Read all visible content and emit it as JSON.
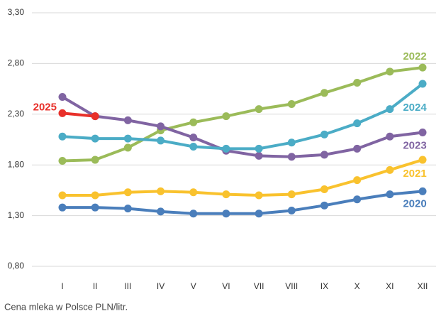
{
  "chart_data": {
    "type": "line",
    "caption": "Cena mleka w Polsce PLN/litr.",
    "categories": [
      "I",
      "II",
      "III",
      "IV",
      "V",
      "VI",
      "VII",
      "VIII",
      "IX",
      "X",
      "XI",
      "XII"
    ],
    "series": [
      {
        "name": "2020",
        "color": "#4a7ebb",
        "values": [
          1.38,
          1.38,
          1.37,
          1.34,
          1.32,
          1.32,
          1.32,
          1.35,
          1.4,
          1.46,
          1.51,
          1.54
        ]
      },
      {
        "name": "2021",
        "color": "#f9c22e",
        "values": [
          1.5,
          1.5,
          1.53,
          1.54,
          1.53,
          1.51,
          1.5,
          1.51,
          1.56,
          1.65,
          1.75,
          1.85
        ]
      },
      {
        "name": "2022",
        "color": "#9bbb59",
        "values": [
          1.84,
          1.85,
          1.97,
          2.14,
          2.22,
          2.28,
          2.35,
          2.4,
          2.51,
          2.61,
          2.72,
          2.76
        ]
      },
      {
        "name": "2023",
        "color": "#8064a2",
        "values": [
          2.47,
          2.28,
          2.24,
          2.18,
          2.07,
          1.94,
          1.89,
          1.88,
          1.9,
          1.96,
          2.08,
          2.12
        ]
      },
      {
        "name": "2024",
        "color": "#4bacc6",
        "values": [
          2.08,
          2.06,
          2.06,
          2.04,
          1.98,
          1.96,
          1.96,
          2.02,
          2.1,
          2.21,
          2.35,
          2.6
        ]
      },
      {
        "name": "2025",
        "color": "#e8302a",
        "values": [
          2.31,
          2.28,
          null,
          null,
          null,
          null,
          null,
          null,
          null,
          null,
          null,
          null
        ]
      }
    ],
    "ylim": [
      0.8,
      3.3
    ],
    "yticks": [
      {
        "value": 0.8,
        "label": "0,80"
      },
      {
        "value": 1.3,
        "label": "1,30"
      },
      {
        "value": 1.8,
        "label": "1,80"
      },
      {
        "value": 2.3,
        "label": "2,30"
      },
      {
        "value": 2.8,
        "label": "2,80"
      },
      {
        "value": 3.3,
        "label": "3,30"
      }
    ],
    "grid": true
  }
}
